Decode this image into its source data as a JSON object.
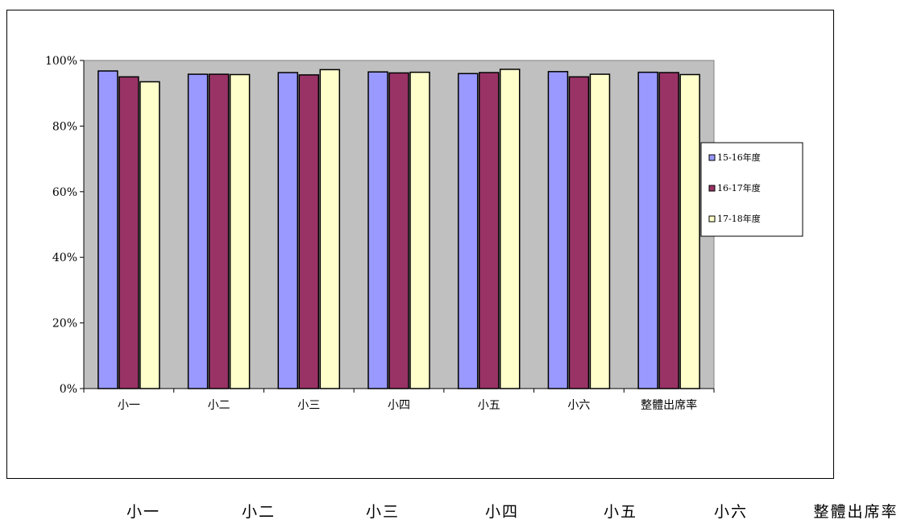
{
  "chart_data": {
    "type": "bar",
    "title": "",
    "xlabel": "",
    "ylabel": "",
    "categories": [
      "小一",
      "小二",
      "小三",
      "小四",
      "小五",
      "小六",
      "整體出席率"
    ],
    "series": [
      {
        "name": "15-16年度",
        "color": "#9999FF",
        "values": [
          96.8,
          95.8,
          96.3,
          96.5,
          96.0,
          96.6,
          96.4
        ]
      },
      {
        "name": "16-17年度",
        "color": "#993366",
        "values": [
          95.0,
          95.8,
          95.6,
          96.2,
          96.3,
          95.0,
          96.3
        ]
      },
      {
        "name": "17-18年度",
        "color": "#FFFFCC",
        "values": [
          93.5,
          95.7,
          97.2,
          96.4,
          97.3,
          95.8,
          95.7
        ]
      }
    ],
    "ylim": [
      0,
      100
    ],
    "yticks": [
      "0%",
      "20%",
      "40%",
      "60%",
      "80%",
      "100%"
    ],
    "plot_background": "#C0C0C0",
    "grid": false,
    "legend_position": "right"
  },
  "bottom_labels": [
    "小一",
    "小二",
    "小三",
    "小四",
    "小五",
    "小六",
    "整體出席率"
  ]
}
